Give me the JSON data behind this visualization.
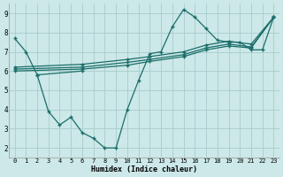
{
  "background_color": "#cce8e8",
  "grid_color": "#aacccc",
  "line_color": "#1a6e6a",
  "xlabel": "Humidex (Indice chaleur)",
  "xlim": [
    -0.5,
    23.5
  ],
  "ylim": [
    1.5,
    9.5
  ],
  "xticks": [
    0,
    1,
    2,
    3,
    4,
    5,
    6,
    7,
    8,
    9,
    10,
    11,
    12,
    13,
    14,
    15,
    16,
    17,
    18,
    19,
    20,
    21,
    22,
    23
  ],
  "yticks": [
    2,
    3,
    4,
    5,
    6,
    7,
    8,
    9
  ],
  "lines": [
    {
      "x": [
        0,
        1,
        2,
        6
      ],
      "y": [
        7.7,
        7.0,
        5.8,
        6.0
      ]
    },
    {
      "x": [
        2,
        3,
        4,
        5,
        6,
        7,
        8,
        9,
        10,
        11,
        12,
        13,
        14,
        15,
        16,
        17,
        18,
        19,
        20,
        21,
        22,
        23
      ],
      "y": [
        5.8,
        3.9,
        3.2,
        3.6,
        2.8,
        2.5,
        2.0,
        2.0,
        4.0,
        5.5,
        6.9,
        7.0,
        8.3,
        9.2,
        8.8,
        8.2,
        7.6,
        7.5,
        7.5,
        7.1,
        7.1,
        8.8
      ]
    },
    {
      "x": [
        0,
        6,
        10,
        12,
        15,
        17,
        19,
        21,
        23
      ],
      "y": [
        6.0,
        6.1,
        6.3,
        6.5,
        6.75,
        7.1,
        7.3,
        7.2,
        8.8
      ]
    },
    {
      "x": [
        0,
        6,
        10,
        12,
        15,
        17,
        19,
        21,
        23
      ],
      "y": [
        6.1,
        6.2,
        6.45,
        6.6,
        6.85,
        7.2,
        7.4,
        7.25,
        8.8
      ]
    },
    {
      "x": [
        0,
        6,
        10,
        12,
        15,
        17,
        19,
        21,
        23
      ],
      "y": [
        6.2,
        6.35,
        6.6,
        6.75,
        7.0,
        7.35,
        7.55,
        7.4,
        8.8
      ]
    }
  ]
}
